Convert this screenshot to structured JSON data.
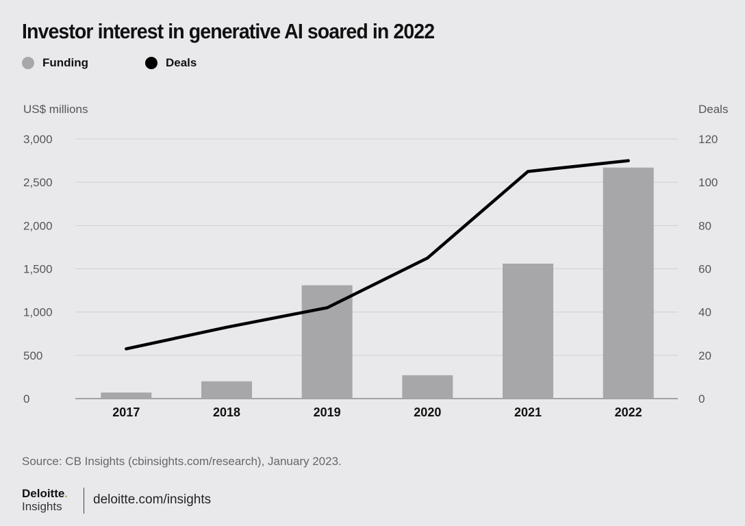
{
  "title": "Investor interest in generative AI soared in 2022",
  "legend": {
    "funding": {
      "label": "Funding",
      "color": "#a7a7aa"
    },
    "deals": {
      "label": "Deals",
      "color": "#000000"
    }
  },
  "axes": {
    "left_unit": "US$ millions",
    "right_unit": "Deals"
  },
  "source": "Source: CB Insights (cbinsights.com/research), January 2023.",
  "brand": {
    "name": "Deloitte",
    "dot": ".",
    "sub": "Insights",
    "site": "deloitte.com/insights"
  },
  "chart_data": {
    "type": "bar",
    "categories": [
      "2017",
      "2018",
      "2019",
      "2020",
      "2021",
      "2022"
    ],
    "series": [
      {
        "name": "Funding",
        "type": "bar",
        "axis": "left",
        "values": [
          70,
          200,
          1310,
          270,
          1560,
          2670
        ],
        "color": "#a7a7aa"
      },
      {
        "name": "Deals",
        "type": "line",
        "axis": "right",
        "values": [
          23,
          33,
          42,
          65,
          105,
          110
        ],
        "color": "#000000"
      }
    ],
    "y_left": {
      "label": "US$ millions",
      "range": [
        0,
        3000
      ],
      "ticks": [
        0,
        500,
        1000,
        1500,
        2000,
        2500,
        3000
      ],
      "tick_labels": [
        "0",
        "500",
        "1,000",
        "1,500",
        "2,000",
        "2,500",
        "3,000"
      ]
    },
    "y_right": {
      "label": "Deals",
      "range": [
        0,
        120
      ],
      "ticks": [
        0,
        20,
        40,
        60,
        80,
        100,
        120
      ],
      "tick_labels": [
        "0",
        "20",
        "40",
        "60",
        "80",
        "100",
        "120"
      ]
    },
    "grid": true,
    "legend_position": "top-left"
  }
}
